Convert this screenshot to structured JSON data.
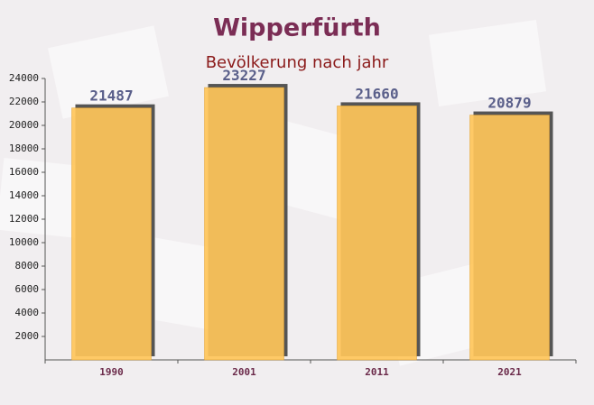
{
  "chart_data": {
    "type": "bar",
    "title": "Wipperfürth",
    "subtitle": "Bevölkerung nach jahr",
    "categories": [
      "1990",
      "2001",
      "2011",
      "2021"
    ],
    "values": [
      21487,
      23227,
      21660,
      20879
    ],
    "color": "#ffc55a",
    "ylim": [
      0,
      24000
    ],
    "yticks": [
      2000,
      4000,
      6000,
      8000,
      10000,
      12000,
      14000,
      16000,
      18000,
      20000,
      22000,
      24000
    ]
  }
}
